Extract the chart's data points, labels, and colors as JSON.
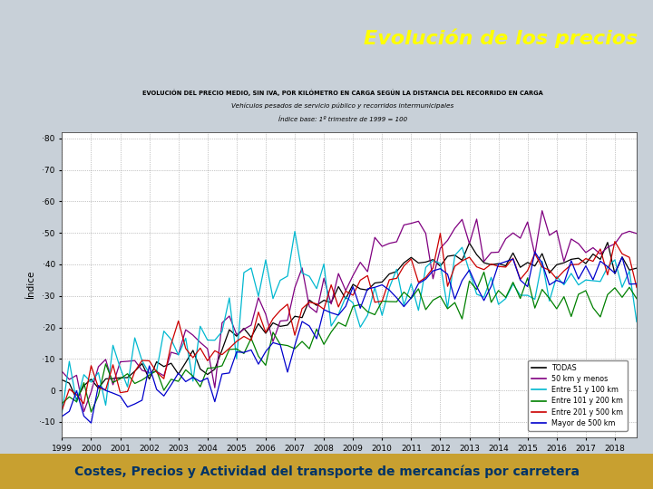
{
  "title_main": "Evolución de los precios",
  "footer_text": "Costes, Precios y Actividad del transporte de mercancías por carretera",
  "chart_title_line1": "EVOLUCIÓN DEL PRECIO MEDIO, SIN IVA, POR KILÓMETRO EN CARGA SEGÚN LA DISTANCIA DEL RECORRIDO EN CARGA",
  "chart_title_line2": "Vehículos pesados de servicio público y recorridos intermunicipales",
  "chart_title_line3": "Índice base: 1º trimestre de 1999 = 100",
  "ylabel": "Índice",
  "yticks": [
    -10,
    0,
    10,
    20,
    30,
    40,
    50,
    60,
    70,
    80
  ],
  "xtick_labels": [
    "1999",
    "2000",
    "2001",
    "2002",
    "2003",
    "2004",
    "2005",
    "2006",
    "2007",
    "2008",
    "2009",
    "2010",
    "2011",
    "2012",
    "2013",
    "2014",
    "2015",
    "2016",
    "2017",
    "2018"
  ],
  "header_left_color": "#d4a017",
  "header_right_color": "#b0c4d8",
  "footer_color_left": "#c8a020",
  "footer_color_right": "#e8c84a",
  "plot_bg": "#ffffff",
  "outer_bg": "#c8d0d8",
  "legend_labels": [
    "TODAS",
    "50 km y menos",
    "Entre 51 y 100 km",
    "Entre 101 y 200 km",
    "Entre 201 y 500 km",
    "Mayor de 500 km"
  ],
  "legend_colors": [
    "#000000",
    "#800080",
    "#00b8d0",
    "#008000",
    "#cc0000",
    "#0000cc"
  ],
  "title_color": "#ffff00",
  "footer_text_color": "#003366"
}
